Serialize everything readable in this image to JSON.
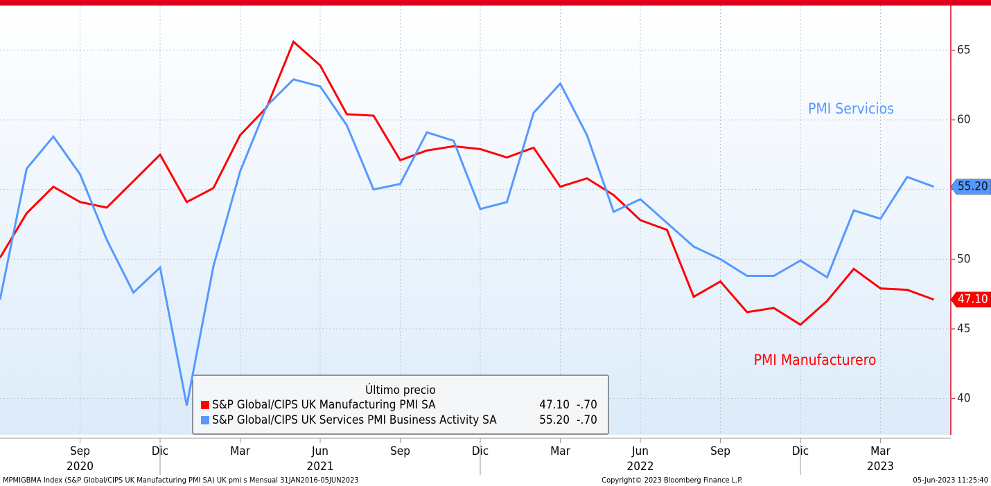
{
  "chart_data": {
    "type": "line",
    "categories": [
      null,
      null,
      null,
      "Sep",
      null,
      null,
      "Dic",
      null,
      null,
      "Mar",
      null,
      null,
      "Jun",
      null,
      null,
      "Sep",
      null,
      null,
      "Dic",
      null,
      null,
      "Mar",
      null,
      null,
      "Jun",
      null,
      null,
      "Sep",
      null,
      null,
      "Dic",
      null,
      null,
      "Mar",
      null,
      null
    ],
    "year_labels": [
      null,
      null,
      null,
      "2020",
      null,
      null,
      null,
      null,
      null,
      null,
      null,
      null,
      "2021",
      null,
      null,
      null,
      null,
      null,
      null,
      null,
      null,
      null,
      null,
      null,
      "2022",
      null,
      null,
      null,
      null,
      null,
      null,
      null,
      null,
      "2023",
      null,
      null
    ],
    "series": [
      {
        "name": "S&P Global/CIPS UK Manufacturing PMI SA",
        "annotation": "PMI Manufacturero",
        "color": "#ff0000",
        "last_label": "47.10",
        "change": "-.70",
        "values": [
          50.1,
          53.3,
          55.2,
          54.1,
          53.7,
          55.6,
          57.5,
          54.1,
          55.1,
          58.9,
          60.9,
          65.6,
          63.9,
          60.4,
          60.3,
          57.1,
          57.8,
          58.1,
          57.9,
          57.3,
          58.0,
          55.2,
          55.8,
          54.6,
          52.8,
          52.1,
          47.3,
          48.4,
          46.2,
          46.5,
          45.3,
          47.0,
          49.3,
          47.9,
          47.8,
          47.1
        ]
      },
      {
        "name": "S&P Global/CIPS UK Services PMI Business Activity SA",
        "annotation": "PMI Servicios",
        "color": "#5599ff",
        "last_label": "55.20",
        "change": "-.70",
        "values": [
          47.1,
          56.5,
          58.8,
          56.1,
          51.4,
          47.6,
          49.4,
          39.5,
          49.5,
          56.3,
          61.0,
          62.9,
          62.4,
          59.6,
          55.0,
          55.4,
          59.1,
          58.5,
          53.6,
          54.1,
          60.5,
          62.6,
          58.9,
          53.4,
          54.3,
          52.6,
          50.9,
          50.0,
          48.8,
          48.8,
          49.9,
          48.7,
          53.5,
          52.9,
          55.9,
          55.2
        ]
      }
    ],
    "ylim": [
      37.4,
      68.2
    ],
    "yticks": [
      40,
      45,
      50,
      55,
      60,
      65
    ],
    "grid": true,
    "legend_title": "Último precio",
    "footer": {
      "left": "MPMIGBMA Index (S&P Global/CIPS UK Manufacturing PMI SA) UK pmi s  Mensual 31JAN2016-05JUN2023",
      "center": "Copyright© 2023 Bloomberg Finance L.P.",
      "right": "05-Jun-2023 11:25:40"
    }
  }
}
